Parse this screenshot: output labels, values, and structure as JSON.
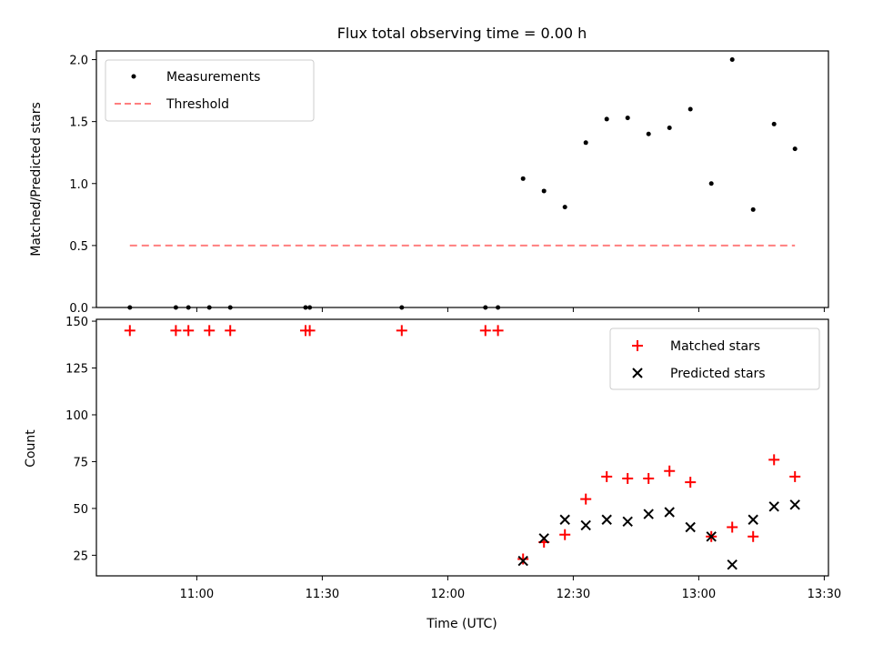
{
  "chart_data": [
    {
      "type": "scatter",
      "title": "Flux total observing time = 0.00 h",
      "xlabel": "",
      "ylabel": "Matched/Predicted stars",
      "ylim": [
        0,
        2.07
      ],
      "yticks": [
        "0.0",
        "0.5",
        "1.0",
        "1.5",
        "2.0"
      ],
      "legend_position": "upper-left",
      "series": [
        {
          "name": "Measurements",
          "color": "#000000",
          "x": [
            "10:44",
            "10:55",
            "10:58",
            "11:03",
            "11:08",
            "11:26",
            "11:27",
            "11:49",
            "12:09",
            "12:12",
            "12:18",
            "12:23",
            "12:28",
            "12:33",
            "12:38",
            "12:43",
            "12:48",
            "12:53",
            "12:58",
            "13:03",
            "13:08",
            "13:13",
            "13:18",
            "13:23"
          ],
          "y": [
            0,
            0,
            0,
            0,
            0,
            0,
            0,
            0,
            0,
            0,
            1.04,
            0.94,
            0.81,
            1.33,
            1.52,
            1.53,
            1.4,
            1.45,
            1.6,
            1.0,
            2.0,
            0.79,
            1.48,
            1.28
          ]
        },
        {
          "name": "Threshold",
          "color": "#ff7f7f",
          "line_style": "dashed",
          "x": [
            "10:44",
            "13:23"
          ],
          "y": [
            0.5,
            0.5
          ]
        }
      ]
    },
    {
      "type": "scatter",
      "title": "",
      "xlabel": "Time (UTC)",
      "ylabel": "Count",
      "ylim": [
        14,
        151
      ],
      "yticks": [
        "25",
        "50",
        "75",
        "100",
        "125",
        "150"
      ],
      "xlim": [
        "10:36",
        "13:31"
      ],
      "xticks": [
        "11:00",
        "11:30",
        "12:00",
        "12:30",
        "13:00",
        "13:30"
      ],
      "legend_position": "upper-right",
      "series": [
        {
          "name": "Matched stars",
          "color": "#ff0000",
          "marker": "plus",
          "x": [
            "10:44",
            "10:55",
            "10:58",
            "11:03",
            "11:08",
            "11:26",
            "11:27",
            "11:49",
            "12:09",
            "12:12",
            "12:18",
            "12:23",
            "12:28",
            "12:33",
            "12:38",
            "12:43",
            "12:48",
            "12:53",
            "12:58",
            "13:03",
            "13:08",
            "13:13",
            "13:18",
            "13:23"
          ],
          "y": [
            145,
            145,
            145,
            145,
            145,
            145,
            145,
            145,
            145,
            145,
            23,
            32,
            36,
            55,
            67,
            66,
            66,
            70,
            64,
            35,
            40,
            35,
            76,
            67
          ]
        },
        {
          "name": "Predicted stars",
          "color": "#000000",
          "marker": "x",
          "x": [
            "12:18",
            "12:23",
            "12:28",
            "12:33",
            "12:38",
            "12:43",
            "12:48",
            "12:53",
            "12:58",
            "13:03",
            "13:08",
            "13:13",
            "13:18",
            "13:23"
          ],
          "y": [
            22,
            34,
            44,
            41,
            44,
            43,
            47,
            48,
            40,
            35,
            20,
            44,
            51,
            52
          ]
        }
      ]
    }
  ]
}
